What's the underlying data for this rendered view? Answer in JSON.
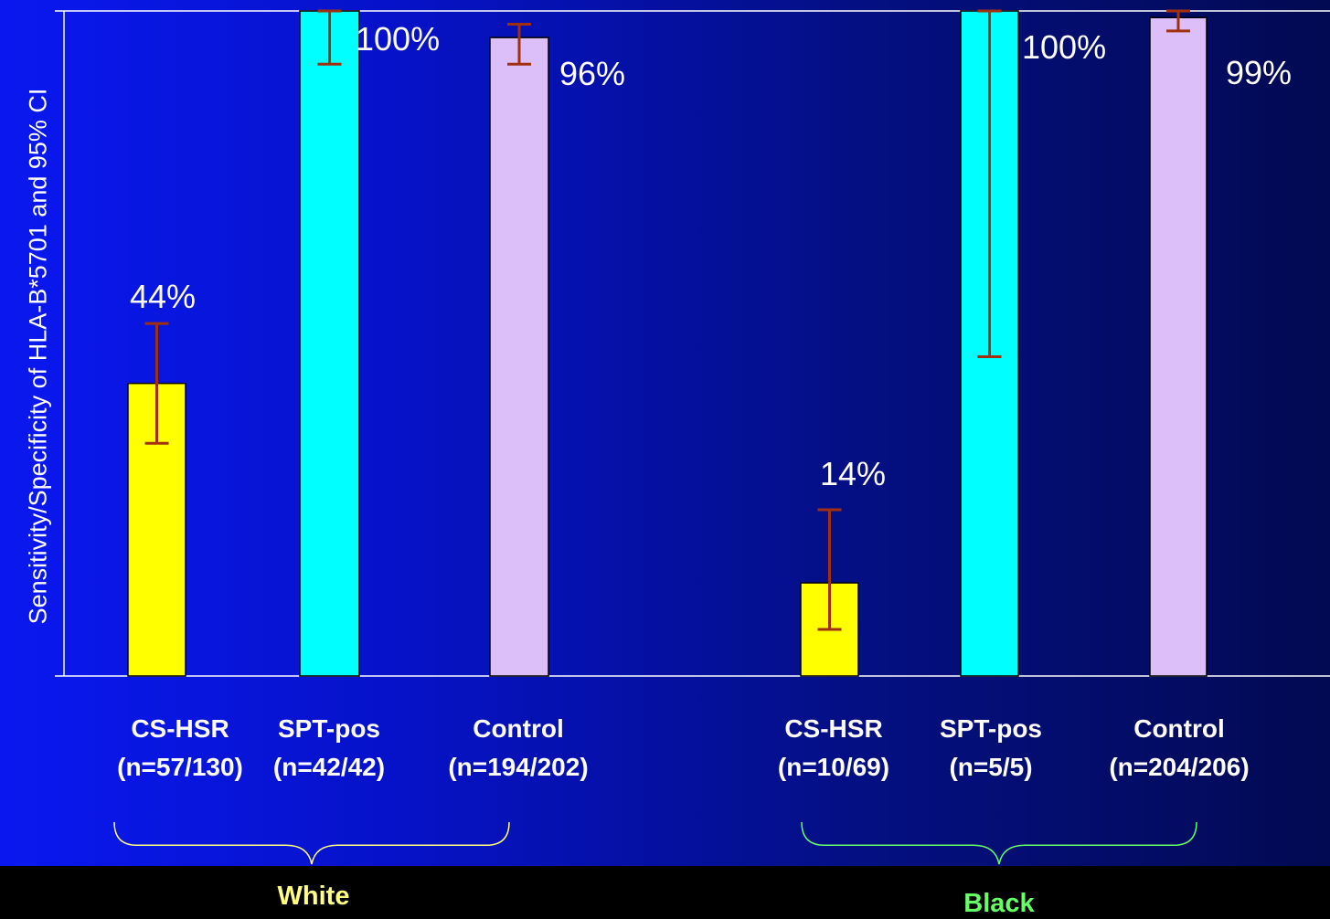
{
  "chart_data": {
    "type": "bar",
    "title": "",
    "ylabel": "Sensitivity/Specificity  of HLA-B*5701 and 95% CI",
    "ylim": [
      0,
      100
    ],
    "bars": [
      {
        "name": "CS-HSR",
        "n": "(n=57/130)",
        "value": 44,
        "label": "44%",
        "ci": [
          35,
          53
        ],
        "group": "White",
        "color": "#ffff00"
      },
      {
        "name": "SPT-pos",
        "n": "(n=42/42)",
        "value": 100,
        "label": "100%",
        "ci": [
          92,
          100
        ],
        "group": "White",
        "color": "#00ffff"
      },
      {
        "name": "Control",
        "n": "(n=194/202)",
        "value": 96,
        "label": "96%",
        "ci": [
          92,
          98
        ],
        "group": "White",
        "color": "#dcbef8"
      },
      {
        "name": "CS-HSR",
        "n": "(n=10/69)",
        "value": 14,
        "label": "14%",
        "ci": [
          7,
          25
        ],
        "group": "Black",
        "color": "#ffff00"
      },
      {
        "name": "SPT-pos",
        "n": "(n=5/5)",
        "value": 100,
        "label": "100%",
        "ci": [
          48,
          100
        ],
        "group": "Black",
        "color": "#00ffff"
      },
      {
        "name": "Control",
        "n": "(n=204/206)",
        "value": 99,
        "label": "99%",
        "ci": [
          97,
          100
        ],
        "group": "Black",
        "color": "#dcbef8"
      }
    ],
    "groups": [
      {
        "name": "White",
        "color": "#ffff80"
      },
      {
        "name": "Black",
        "color": "#66ff66"
      }
    ]
  },
  "colors": {
    "error_bar": "#a03010",
    "axis": "#ffffff",
    "text": "#ffffff"
  }
}
